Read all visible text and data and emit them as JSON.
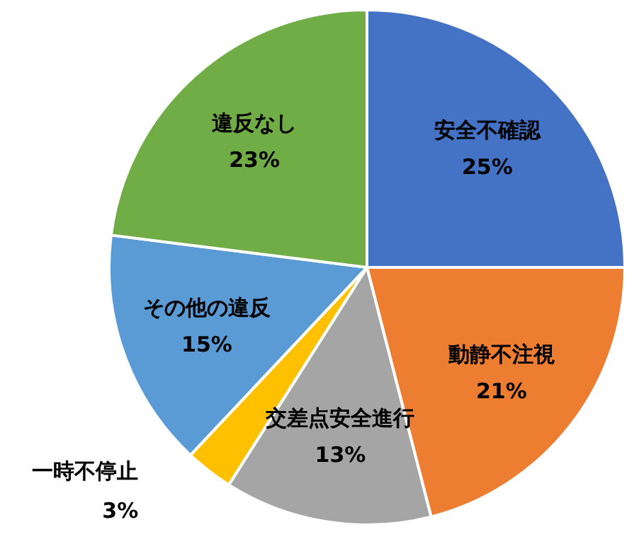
{
  "chart_data": {
    "type": "pie",
    "categories": [
      "安全不確認",
      "動静不注視",
      "交差点安全進行",
      "一時不停止",
      "その他の違反",
      "違反なし"
    ],
    "values": [
      25,
      21,
      13,
      3,
      15,
      23
    ],
    "value_labels": [
      "25%",
      "21%",
      "13%",
      "3%",
      "15%",
      "23%"
    ],
    "colors": [
      "#4472c4",
      "#ed7d31",
      "#a5a5a5",
      "#ffc000",
      "#5b9bd5",
      "#70ad47"
    ]
  }
}
